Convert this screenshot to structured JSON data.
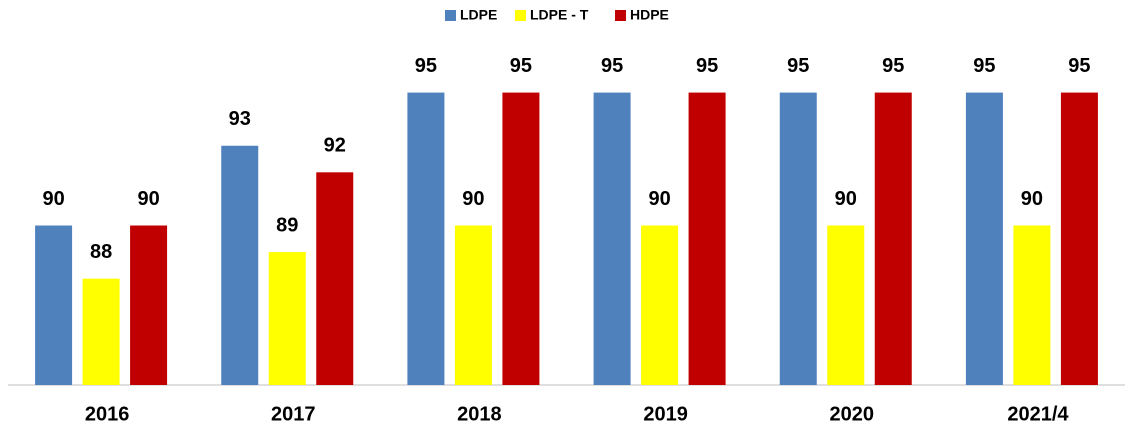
{
  "chart_data": {
    "type": "bar",
    "categories": [
      "2016",
      "2017",
      "2018",
      "2019",
      "2020",
      "2021/4"
    ],
    "series": [
      {
        "name": "LDPE",
        "color": "#4f81bd",
        "values": [
          90,
          93,
          95,
          95,
          95,
          95
        ]
      },
      {
        "name": "LDPE - T",
        "color": "#ffff00",
        "values": [
          88,
          89,
          90,
          90,
          90,
          90
        ]
      },
      {
        "name": "HDPE",
        "color": "#c00000",
        "values": [
          90,
          92,
          95,
          95,
          95,
          95
        ]
      }
    ],
    "ylim": [
      84,
      96
    ],
    "legend": "top"
  }
}
